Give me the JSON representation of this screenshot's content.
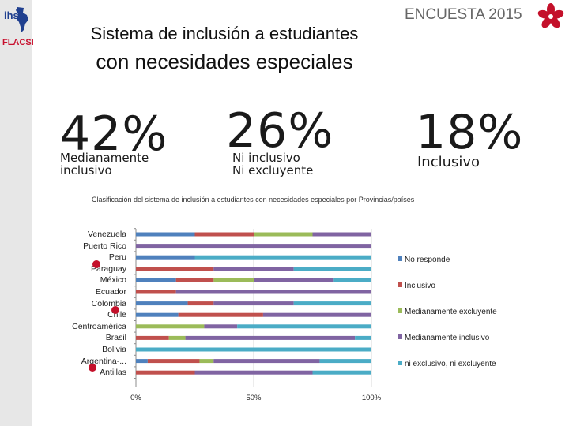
{
  "logo": {
    "ihs": "ihs",
    "flacso": "FLACSI"
  },
  "header": {
    "title_line1": "Sistema de inclusión a estudiantes",
    "title_line2": "con necesidades especiales",
    "survey": "ENCUESTA 2015"
  },
  "stats": [
    {
      "value": "42%",
      "label_l1": "Medianamente",
      "label_l2": "inclusivo"
    },
    {
      "value": "26%",
      "label_l1": "Ni inclusivo",
      "label_l2": "Ni excluyente"
    },
    {
      "value": "18%",
      "label_l1": "Inclusivo",
      "label_l2": ""
    }
  ],
  "colors": {
    "no_responde": "#4f81bd",
    "inclusivo": "#c0504d",
    "medianamente_excluyente": "#9bbb59",
    "medianamente_inclusivo": "#8064a2",
    "ni_exclusivo": "#4bacc6",
    "marker": "#c4102a"
  },
  "chart_data": {
    "type": "bar",
    "orientation": "horizontal",
    "stacked": true,
    "title": "Clasificación del sistema de inclusión a estudiantes con necesidades especiales por Provincias/países",
    "categories": [
      "Venezuela",
      "Puerto Rico",
      "Peru",
      "Paraguay",
      "México",
      "Ecuador",
      "Colombia",
      "Chile",
      "Centroamérica",
      "Brasil",
      "Bolivia",
      "Argentina-...",
      "Antillas"
    ],
    "series": [
      {
        "name": "No responde",
        "values": [
          25,
          0,
          25,
          0,
          17,
          0,
          22,
          18,
          0,
          0,
          0,
          5,
          0
        ]
      },
      {
        "name": "Inclusivo",
        "values": [
          25,
          0,
          0,
          33,
          16,
          17,
          11,
          36,
          0,
          14,
          0,
          22,
          25
        ]
      },
      {
        "name": "Medianamente excluyente",
        "values": [
          25,
          0,
          0,
          0,
          17,
          0,
          0,
          0,
          29,
          7,
          0,
          6,
          0
        ]
      },
      {
        "name": "Medianamente inclusivo",
        "values": [
          25,
          100,
          0,
          34,
          34,
          83,
          34,
          46,
          14,
          72,
          0,
          45,
          50
        ]
      },
      {
        "name": "ni exclusivo, ni excluyente",
        "values": [
          0,
          0,
          75,
          33,
          16,
          0,
          33,
          0,
          57,
          7,
          100,
          22,
          25
        ]
      }
    ],
    "xlim": [
      0,
      100
    ],
    "xticks": [
      "0%",
      "50%",
      "100%"
    ],
    "legend_position": "right",
    "highlighted": [
      "Paraguay",
      "Chile",
      "Antillas"
    ]
  }
}
